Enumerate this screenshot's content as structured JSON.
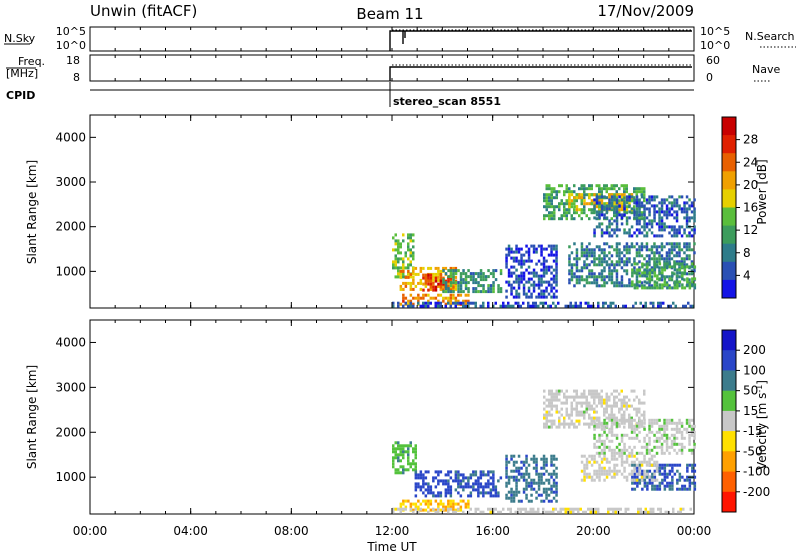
{
  "header": {
    "left": "Unwin (fitACF)",
    "center": "Beam 11",
    "right": "17/Nov/2009"
  },
  "top_panels": {
    "nsky_label": "N.Sky",
    "nsky_ticks": [
      "10^5",
      "10^0"
    ],
    "nsearch_label": "N.Search",
    "nsearch_ticks": [
      "10^5",
      "10^0"
    ],
    "freq_label_line1": "Freq.",
    "freq_label_line2": "[MHz]",
    "freq_ticks": [
      "18",
      "8"
    ],
    "nave_label": "Nave",
    "nave_ticks": [
      "60",
      "0"
    ],
    "cpid_label": "CPID",
    "cpid_text": "stereo_scan 8551"
  },
  "x_axis": {
    "label": "Time UT",
    "ticks": [
      "00:00",
      "04:00",
      "08:00",
      "12:00",
      "16:00",
      "20:00",
      "00:00"
    ]
  },
  "chart_data": [
    {
      "type": "heatmap",
      "name": "power",
      "ylabel": "Slant Range [km]",
      "xlabel": "",
      "xlim": [
        0,
        24
      ],
      "ylim": [
        180,
        4500
      ],
      "yticks": [
        "1000",
        "2000",
        "3000",
        "4000"
      ],
      "colorbar": {
        "label": "Power [dB]",
        "ticks": [
          "4",
          "8",
          "12",
          "16",
          "20",
          "24",
          "28"
        ],
        "range": [
          0,
          32
        ],
        "colors": [
          "#1414e6",
          "#2a50b4",
          "#2e7c8a",
          "#3c9c5c",
          "#5abe3c",
          "#e6d000",
          "#f0a000",
          "#e86000",
          "#e02000",
          "#c80000"
        ]
      },
      "regions": [
        {
          "t": [
            12.0,
            12.8
          ],
          "r": [
            900,
            1850
          ],
          "level": 14
        },
        {
          "t": [
            12.3,
            14.5
          ],
          "r": [
            600,
            1100
          ],
          "level": 20
        },
        {
          "t": [
            13.2,
            14.5
          ],
          "r": [
            600,
            950
          ],
          "level": 26
        },
        {
          "t": [
            14.0,
            16.3
          ],
          "r": [
            550,
            1050
          ],
          "level": 10
        },
        {
          "t": [
            12.3,
            15.0
          ],
          "r": [
            250,
            500
          ],
          "level": 22
        },
        {
          "t": [
            12.0,
            24.0
          ],
          "r": [
            190,
            320
          ],
          "level": 5
        },
        {
          "t": [
            18.0,
            22.0
          ],
          "r": [
            2200,
            2950
          ],
          "level": 12
        },
        {
          "t": [
            19.0,
            21.5
          ],
          "r": [
            2350,
            2750
          ],
          "level": 18
        },
        {
          "t": [
            20.0,
            24.0
          ],
          "r": [
            1800,
            2700
          ],
          "level": 6
        },
        {
          "t": [
            19.0,
            24.0
          ],
          "r": [
            650,
            1650
          ],
          "level": 8
        },
        {
          "t": [
            21.5,
            24.0
          ],
          "r": [
            650,
            1200
          ],
          "level": 12
        },
        {
          "t": [
            16.5,
            18.5
          ],
          "r": [
            450,
            1600
          ],
          "level": 4
        }
      ]
    },
    {
      "type": "heatmap",
      "name": "velocity",
      "ylabel": "Slant Range [km]",
      "xlabel": "Time UT",
      "xlim": [
        0,
        24
      ],
      "ylim": [
        180,
        4500
      ],
      "yticks": [
        "1000",
        "2000",
        "3000",
        "4000"
      ],
      "colorbar": {
        "label": "Velocity [m s^-1]",
        "ticks": [
          "200",
          "100",
          "50",
          "15",
          "-15",
          "-50",
          "-100",
          "-200"
        ],
        "range": [
          -250,
          250
        ],
        "colors": [
          "#1414c8",
          "#2a46c8",
          "#3c7c8c",
          "#54c23c",
          "#c8c8c8",
          "#ffe000",
          "#ffa000",
          "#ff6000",
          "#ff1400"
        ]
      },
      "regions": [
        {
          "t": [
            12.0,
            12.9
          ],
          "r": [
            1100,
            1800
          ],
          "level": 60
        },
        {
          "t": [
            12.9,
            16.3
          ],
          "r": [
            600,
            1150
          ],
          "level": 160
        },
        {
          "t": [
            12.3,
            15.0
          ],
          "r": [
            250,
            500
          ],
          "level": -80
        },
        {
          "t": [
            12.0,
            24.0
          ],
          "r": [
            190,
            320
          ],
          "level": -5
        },
        {
          "t": [
            18.0,
            22.0
          ],
          "r": [
            2100,
            2950
          ],
          "level": 0
        },
        {
          "t": [
            20.0,
            24.0
          ],
          "r": [
            1500,
            2300
          ],
          "level": 10
        },
        {
          "t": [
            21.5,
            24.0
          ],
          "r": [
            700,
            1300
          ],
          "level": 150
        },
        {
          "t": [
            19.5,
            22.5
          ],
          "r": [
            900,
            1500
          ],
          "level": -5
        },
        {
          "t": [
            16.5,
            18.5
          ],
          "r": [
            450,
            1500
          ],
          "level": 120
        }
      ]
    }
  ]
}
